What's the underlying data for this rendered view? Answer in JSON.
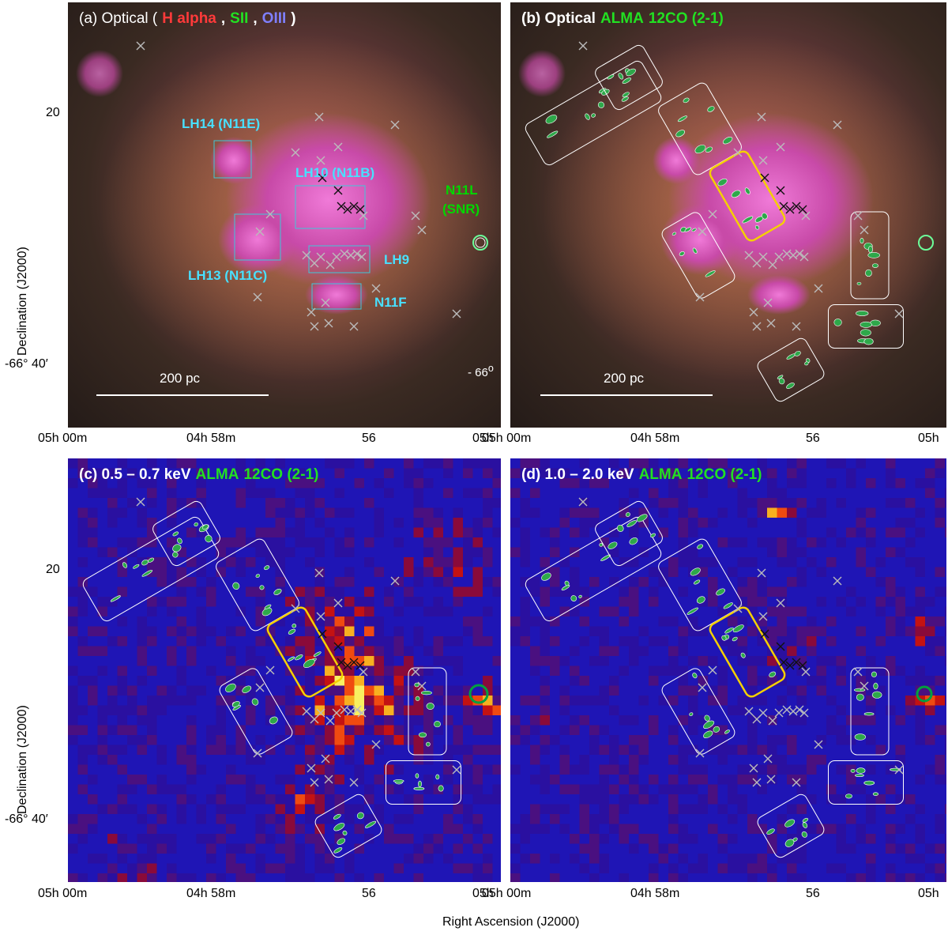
{
  "panels": {
    "a": {
      "title_label": "(a) Optical (",
      "title_h": "H alpha",
      "title_sep1": ",",
      "title_s": "SII",
      "title_sep2": ",",
      "title_o": "OIII",
      "title_end": ")",
      "regions": [
        "LH14 (N11E)",
        "LH10 (N11B)",
        "LH13 (N11C)",
        "LH9",
        "N11F"
      ],
      "snr_line1": "N11L",
      "snr_line2": "(SNR)",
      "scale": "200 pc",
      "edge": "- 66",
      "edge_sup": "o"
    },
    "b": {
      "title_label": "(b) Optical",
      "title_alma": "ALMA",
      "title_co": "12CO (2-1)",
      "scale": "200 pc"
    },
    "c": {
      "title_label": "(c) 0.5 – 0.7 keV",
      "title_alma": "ALMA",
      "title_co": "12CO (2-1)"
    },
    "d": {
      "title_label": "(d) 1.0 – 2.0 keV",
      "title_alma": "ALMA",
      "title_co": "12CO (2-1)"
    }
  },
  "axes": {
    "y_label": "Declination (J2000)",
    "x_label": "Right Ascension (J2000)",
    "y_ticks": [
      "20",
      "-66° 40′"
    ],
    "x_ticks": [
      "05h 00m",
      "04h 58m",
      "56",
      "05h"
    ]
  }
}
